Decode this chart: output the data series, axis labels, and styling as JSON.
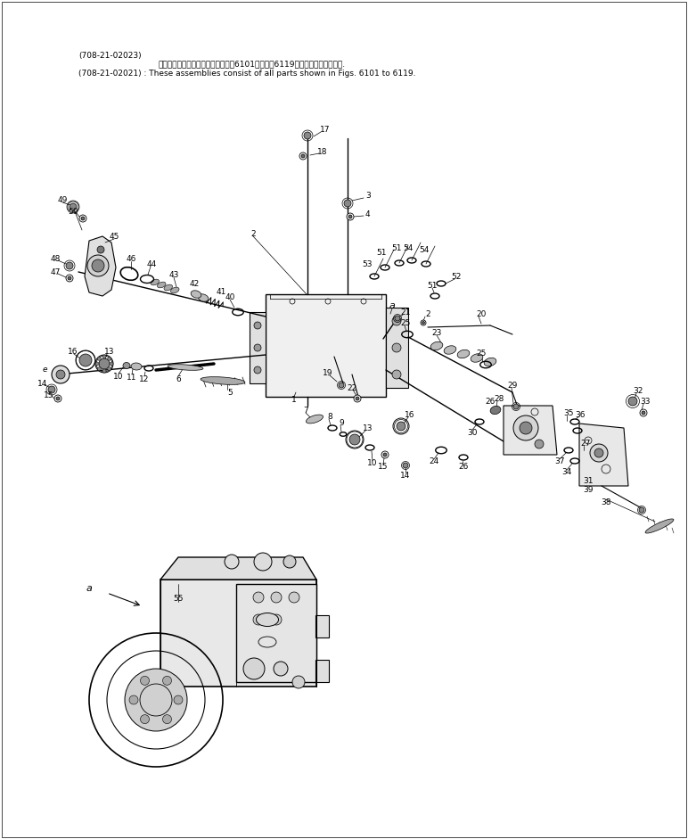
{
  "background_color": "#ffffff",
  "fig_width": 7.72,
  "fig_height": 9.41,
  "dpi": 100,
  "header_line1": "(708-21-02023)",
  "header_line2": "これらのアセンブリの構成部品は療6101図から療6119図の部品まで含みます.",
  "header_line3": "(708-21-02021) : These assemblies consist of all parts shown in Figs. 6101 to 6119.",
  "lc": "#000000",
  "tc": "#000000"
}
